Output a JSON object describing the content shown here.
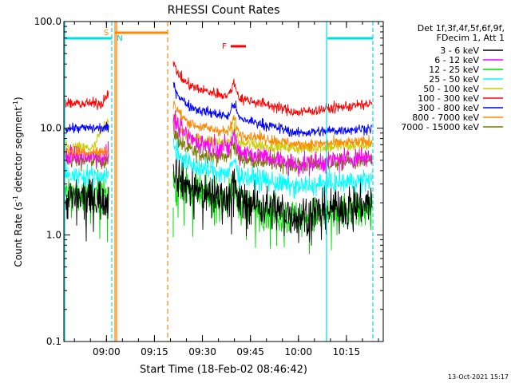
{
  "chart_data": {
    "type": "line",
    "title": "RHESSI Count Rates",
    "xlabel": "Start Time (18-Feb-02 08:46:42)",
    "ylabel_main": "Count Rate (s",
    "ylabel_sup1": "-1",
    "ylabel_mid": " detector segment",
    "ylabel_sup2": "-1",
    "ylabel_end": ")",
    "y_scale": "log",
    "ylim": [
      0.1,
      100
    ],
    "xlim": [
      "08:46:42",
      "10:26:30"
    ],
    "x_ticks": [
      {
        "label": "09:00",
        "minutes": 13.3
      },
      {
        "label": "09:15",
        "minutes": 28.3
      },
      {
        "label": "09:30",
        "minutes": 43.3
      },
      {
        "label": "09:45",
        "minutes": 58.3
      },
      {
        "label": "10:00",
        "minutes": 73.3
      },
      {
        "label": "10:15",
        "minutes": 88.3
      }
    ],
    "y_ticks": [
      "0.1",
      "1.0",
      "10.0",
      "100.0"
    ],
    "grid": false,
    "legend_header_1": "Det 1f,3f,4f,5f,6f,9f,",
    "legend_header_2": "FDecim 1, Att 1",
    "legend_placement": "right",
    "series": [
      {
        "name": "3 - 6 keV",
        "color": "#000000"
      },
      {
        "name": "6 - 12 keV",
        "color": "#ff00ff"
      },
      {
        "name": "12 - 25 keV",
        "color": "#00dd00"
      },
      {
        "name": "25 - 50 keV",
        "color": "#00ffff"
      },
      {
        "name": "50 - 100 keV",
        "color": "#cccc00"
      },
      {
        "name": "100 - 300 keV",
        "color": "#ff0000"
      },
      {
        "name": "300 - 800 keV",
        "color": "#0000ff"
      },
      {
        "name": "800 - 7000 keV",
        "color": "#ff8800"
      },
      {
        "name": "7000 - 15000 keV",
        "color": "#777700"
      }
    ],
    "annotations": {
      "s_label": "S",
      "n_label": "N",
      "f_label": "F"
    },
    "footer_timestamp": "13-Oct-2021 15:17"
  }
}
